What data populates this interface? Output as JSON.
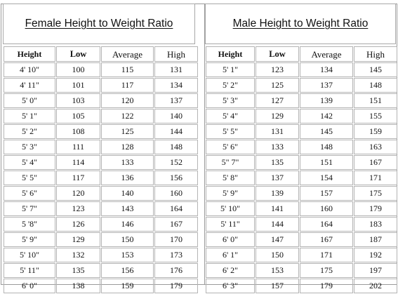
{
  "female": {
    "title": "Female Height to Weight Ratio",
    "headers": [
      "Height",
      "Low",
      "Average",
      "High"
    ],
    "rows": [
      [
        "4' 10\"",
        "100",
        "115",
        "131"
      ],
      [
        "4' 11\"",
        "101",
        "117",
        "134"
      ],
      [
        "5' 0\"",
        "103",
        "120",
        "137"
      ],
      [
        "5' 1\"",
        "105",
        "122",
        "140"
      ],
      [
        "5' 2\"",
        "108",
        "125",
        "144"
      ],
      [
        "5' 3\"",
        "111",
        "128",
        "148"
      ],
      [
        "5' 4\"",
        "114",
        "133",
        "152"
      ],
      [
        "5' 5\"",
        "117",
        "136",
        "156"
      ],
      [
        "5' 6\"",
        "120",
        "140",
        "160"
      ],
      [
        "5' 7\"",
        "123",
        "143",
        "164"
      ],
      [
        "5 '8\"",
        "126",
        "146",
        "167"
      ],
      [
        "5' 9\"",
        "129",
        "150",
        "170"
      ],
      [
        "5' 10\"",
        "132",
        "153",
        "173"
      ],
      [
        "5' 11\"",
        "135",
        "156",
        "176"
      ],
      [
        "6' 0\"",
        "138",
        "159",
        "179"
      ]
    ]
  },
  "male": {
    "title": "Male Height to Weight Ratio",
    "headers": [
      "Height",
      "Low",
      "Average",
      "High"
    ],
    "rows": [
      [
        "5' 1\"",
        "123",
        "134",
        "145"
      ],
      [
        "5' 2\"",
        "125",
        "137",
        "148"
      ],
      [
        "5' 3\"",
        "127",
        "139",
        "151"
      ],
      [
        "5' 4\"",
        "129",
        "142",
        "155"
      ],
      [
        "5' 5\"",
        "131",
        "145",
        "159"
      ],
      [
        "5' 6\"",
        "133",
        "148",
        "163"
      ],
      [
        "5\" 7\"",
        "135",
        "151",
        "167"
      ],
      [
        "5' 8\"",
        "137",
        "154",
        "171"
      ],
      [
        "5' 9\"",
        "139",
        "157",
        "175"
      ],
      [
        "5' 10\"",
        "141",
        "160",
        "179"
      ],
      [
        "5' 11\"",
        "144",
        "164",
        "183"
      ],
      [
        "6' 0\"",
        "147",
        "167",
        "187"
      ],
      [
        "6' 1\"",
        "150",
        "171",
        "192"
      ],
      [
        "6' 2\"",
        "153",
        "175",
        "197"
      ],
      [
        "6' 3\"",
        "157",
        "179",
        "202"
      ]
    ]
  }
}
